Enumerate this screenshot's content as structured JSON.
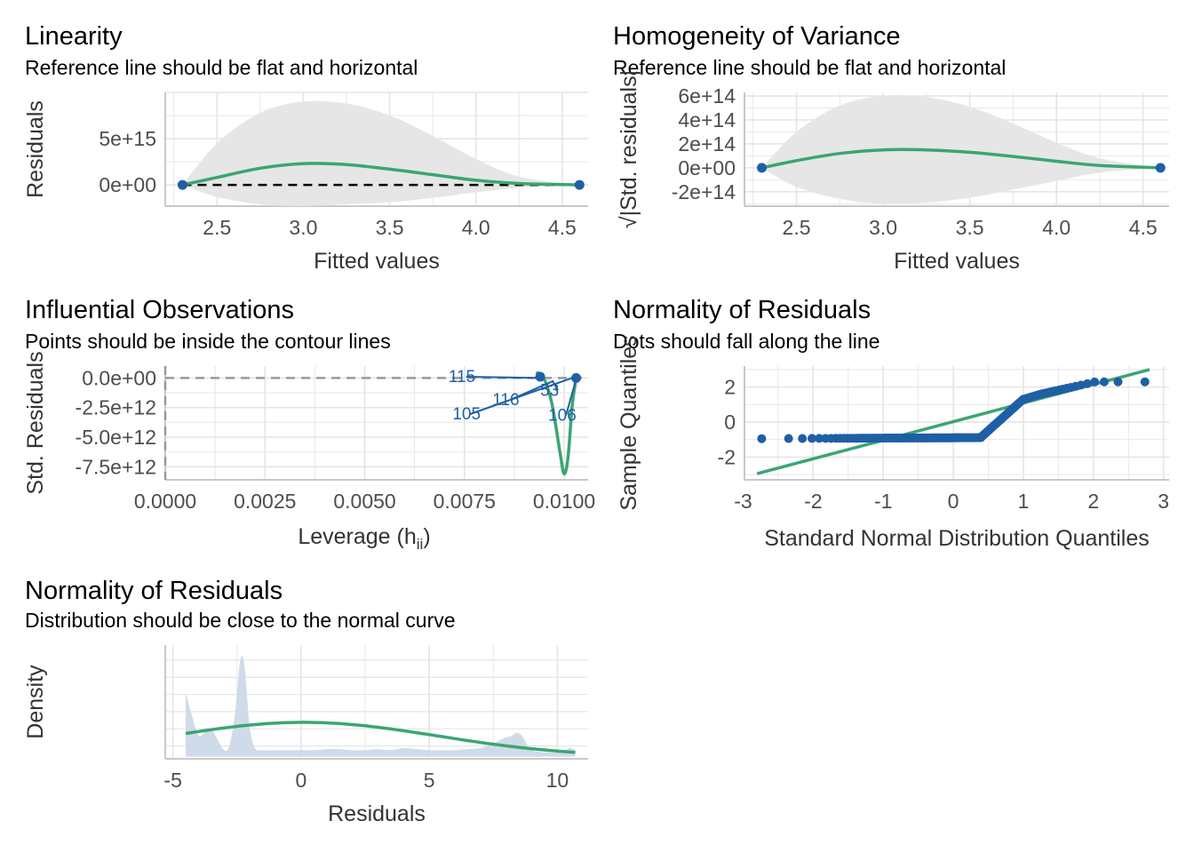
{
  "colors": {
    "points": "#1f5fa5",
    "fit_line": "#3aa573",
    "band": "#e6e6e6",
    "grid": "#e5e5e5",
    "density_fill": "#cfdbe9",
    "ref_line": "#000000"
  },
  "chart_data": [
    {
      "id": "linearity",
      "type": "scatter",
      "title": "Linearity",
      "subtitle": "Reference line should be flat and horizontal",
      "xlabel": "Fitted values",
      "ylabel": "Residuals",
      "xlim": [
        2.2,
        4.65
      ],
      "ylim": [
        -2300000000000000.0,
        1e+16
      ],
      "xticks": [
        2.5,
        3.0,
        3.5,
        4.0,
        4.5
      ],
      "xtick_labels": [
        "2.5",
        "3.0",
        "3.5",
        "4.0",
        "4.5"
      ],
      "yticks": [
        0,
        5000000000000000.0
      ],
      "ytick_labels": [
        "0e+00",
        "5e+15"
      ],
      "points": [
        [
          2.3,
          0
        ],
        [
          4.6,
          0
        ]
      ],
      "smooth": {
        "x": [
          2.3,
          2.5,
          2.75,
          3.0,
          3.25,
          3.5,
          3.75,
          4.0,
          4.25,
          4.6
        ],
        "y": [
          0,
          800000000000000.0,
          1800000000000000.0,
          2300000000000000.0,
          2200000000000000.0,
          1700000000000000.0,
          1100000000000000.0,
          500000000000000.0,
          150000000000000.0,
          0
        ]
      },
      "band": {
        "x": [
          2.3,
          2.5,
          2.75,
          3.0,
          3.25,
          3.5,
          3.75,
          4.0,
          4.25,
          4.6
        ],
        "upper": [
          0,
          4500000000000000.0,
          7800000000000000.0,
          9000000000000000.0,
          8800000000000000.0,
          7500000000000000.0,
          5300000000000000.0,
          2800000000000000.0,
          900000000000000.0,
          0
        ],
        "lower": [
          0,
          -1300000000000000.0,
          -2100000000000000.0,
          -2300000000000000.0,
          -2100000000000000.0,
          -1900000000000000.0,
          -1400000000000000.0,
          -800000000000000.0,
          -300000000000000.0,
          0
        ]
      },
      "hline": 0,
      "grid": true,
      "legend": "none"
    },
    {
      "id": "homogeneity",
      "type": "scatter",
      "title": "Homogeneity of Variance",
      "subtitle": "Reference line should be flat and horizontal",
      "xlabel": "Fitted values",
      "ylabel": "√|Std. residuals|",
      "xlim": [
        2.2,
        4.65
      ],
      "ylim": [
        -320000000000000.0,
        630000000000000.0
      ],
      "xticks": [
        2.5,
        3.0,
        3.5,
        4.0,
        4.5
      ],
      "xtick_labels": [
        "2.5",
        "3.0",
        "3.5",
        "4.0",
        "4.5"
      ],
      "yticks": [
        -200000000000000.0,
        0,
        200000000000000.0,
        400000000000000.0,
        600000000000000.0
      ],
      "ytick_labels": [
        "-2e+14",
        "0e+00",
        "2e+14",
        "4e+14",
        "6e+14"
      ],
      "points": [
        [
          2.3,
          0
        ],
        [
          4.6,
          0
        ]
      ],
      "smooth": {
        "x": [
          2.3,
          2.5,
          2.75,
          3.0,
          3.25,
          3.5,
          3.75,
          4.0,
          4.25,
          4.6
        ],
        "y": [
          0,
          60000000000000.0,
          120000000000000.0,
          150000000000000.0,
          150000000000000.0,
          130000000000000.0,
          95000000000000.0,
          55000000000000.0,
          20000000000000.0,
          0
        ]
      },
      "band": {
        "x": [
          2.3,
          2.5,
          2.75,
          3.0,
          3.25,
          3.5,
          3.75,
          4.0,
          4.25,
          4.6
        ],
        "upper": [
          0,
          300000000000000.0,
          520000000000000.0,
          600000000000000.0,
          590000000000000.0,
          510000000000000.0,
          370000000000000.0,
          210000000000000.0,
          80000000000000.0,
          0
        ],
        "lower": [
          0,
          -160000000000000.0,
          -260000000000000.0,
          -300000000000000.0,
          -290000000000000.0,
          -250000000000000.0,
          -180000000000000.0,
          -110000000000000.0,
          -40000000000000.0,
          0
        ]
      },
      "grid": true,
      "legend": "none"
    },
    {
      "id": "influential",
      "type": "scatter",
      "title": "Influential Observations",
      "subtitle": "Points should be inside the contour lines",
      "xlabel": "Leverage (h",
      "xlabel_sub": "ii",
      "xlabel_tail": ")",
      "ylabel": "Std. Residuals",
      "xlim": [
        0,
        0.0106
      ],
      "ylim": [
        -8600000000000.0,
        1000000000000.0
      ],
      "xticks": [
        0,
        0.0025,
        0.005,
        0.0075,
        0.01
      ],
      "xtick_labels": [
        "0.0000",
        "0.0025",
        "0.0050",
        "0.0075",
        "0.0100"
      ],
      "yticks": [
        -7500000000000.0,
        -5000000000000.0,
        -2500000000000.0,
        0
      ],
      "ytick_labels": [
        "-7.5e+12",
        "-5.0e+12",
        "-2.5e+12",
        "0.0e+00"
      ],
      "points": [
        [
          0.0094,
          100000000000.0
        ],
        [
          0.0103,
          0
        ]
      ],
      "smooth": {
        "x": [
          0.0093,
          0.0095,
          0.0097,
          0.0099,
          0.01,
          0.0101,
          0.0102,
          0.0103
        ],
        "y": [
          500000000000.0,
          -100000000000.0,
          -2300000000000.0,
          -6400000000000.0,
          -8100000000000.0,
          -6600000000000.0,
          -2400000000000.0,
          0
        ]
      },
      "labels": [
        {
          "text": "115",
          "x": 0.0071,
          "y": -350000000000.0,
          "tx": 0.0094,
          "ty": 0
        },
        {
          "text": "105",
          "x": 0.0072,
          "y": -3500000000000.0,
          "tx": 0.0102,
          "ty": 0
        },
        {
          "text": "116",
          "x": 0.0082,
          "y": -2300000000000.0,
          "tx": 0.0097,
          "ty": -300000000000.0
        },
        {
          "text": "53",
          "x": 0.0094,
          "y": -1500000000000.0,
          "tx": 0.0097,
          "ty": -200000000000.0
        },
        {
          "text": "106",
          "x": 0.0096,
          "y": -3600000000000.0,
          "tx": 0.0103,
          "ty": -100000000000.0
        }
      ],
      "hline": 0,
      "vline": 0,
      "grid": true,
      "legend": "none"
    },
    {
      "id": "qq",
      "type": "scatter",
      "title": "Normality of Residuals",
      "subtitle": "Dots should fall along the line",
      "xlabel": "Standard Normal Distribution Quantiles",
      "ylabel": "Sample Quantiles",
      "xlim": [
        -2.98,
        3.08
      ],
      "ylim": [
        -3.3,
        3.2
      ],
      "xticks": [
        -3,
        -2,
        -1,
        0,
        1,
        2,
        3
      ],
      "xtick_labels": [
        "-3",
        "-2",
        "-1",
        "0",
        "1",
        "2",
        "3"
      ],
      "yticks": [
        -2,
        0,
        2
      ],
      "ytick_labels": [
        "-2",
        "0",
        "2"
      ],
      "line": [
        [
          -2.8,
          -2.95
        ],
        [
          2.8,
          3.0
        ]
      ],
      "grid": true,
      "legend": "none"
    },
    {
      "id": "density",
      "type": "area",
      "title": "Normality of Residuals",
      "subtitle": "Distribution should be close to the normal curve",
      "xlabel": "Residuals",
      "ylabel": "Density",
      "xlim": [
        -5.3,
        11.2
      ],
      "ylim": [
        -0.01,
        0.52
      ],
      "xticks": [
        -5,
        0,
        5,
        10
      ],
      "xtick_labels": [
        "-5",
        "0",
        "5",
        "10"
      ],
      "density": {
        "x": [
          -4.5,
          -4.3,
          -4.0,
          -3.7,
          -3.5,
          -3.3,
          -3.0,
          -2.8,
          -2.6,
          -2.5,
          -2.4,
          -2.3,
          -2.2,
          -2.1,
          -2.0,
          -1.8,
          -1.5,
          -1.0,
          -0.5,
          0,
          0.5,
          1.0,
          1.5,
          2.0,
          2.5,
          3.0,
          3.5,
          4.0,
          4.5,
          5.0,
          5.5,
          6.0,
          6.5,
          7.0,
          7.5,
          7.8,
          8.0,
          8.2,
          8.4,
          8.6,
          8.8,
          9.0,
          9.5,
          10.0,
          10.3,
          10.5,
          10.7
        ],
        "y": [
          0.3,
          0.21,
          0.1,
          0.12,
          0.13,
          0.09,
          0.03,
          0.05,
          0.18,
          0.3,
          0.43,
          0.47,
          0.42,
          0.27,
          0.13,
          0.04,
          0.03,
          0.03,
          0.03,
          0.03,
          0.03,
          0.035,
          0.035,
          0.03,
          0.03,
          0.035,
          0.03,
          0.04,
          0.035,
          0.03,
          0.03,
          0.03,
          0.035,
          0.04,
          0.06,
          0.08,
          0.09,
          0.095,
          0.11,
          0.1,
          0.06,
          0.03,
          0.02,
          0.02,
          0.03,
          0.04,
          0.03
        ]
      },
      "normal_curve": {
        "mean": 0.1,
        "sd": 5.2,
        "scale": 0.64
      },
      "grid": true,
      "legend": "none"
    }
  ]
}
